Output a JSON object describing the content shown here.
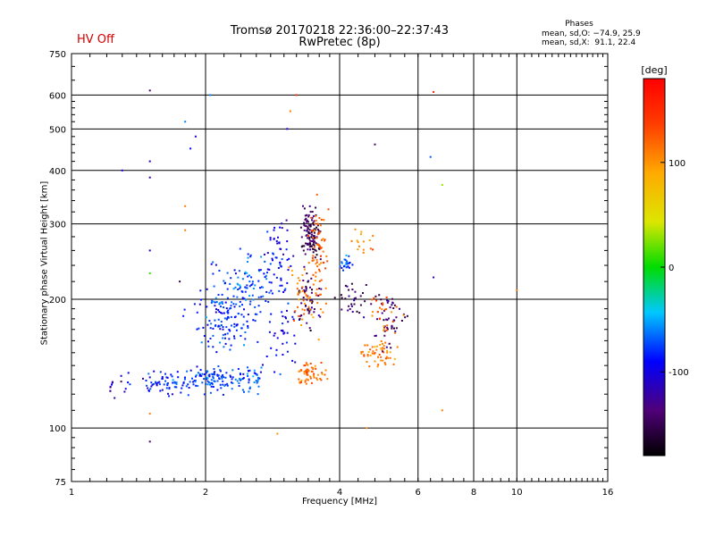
{
  "header": {
    "title_line1": "Tromsø 20170218 22:36:00–22:37:43",
    "title_line2": "RwPretec (8p)",
    "status": "HV Off",
    "phases_title": "Phases",
    "phases_o": "mean, sd,O: −74.9, 25.9",
    "phases_x": "mean, sd,X:  91.1, 22.4"
  },
  "colors": {
    "status": "#d40000"
  },
  "chart_data": {
    "type": "scatter",
    "title": "Tromsø 20170218 22:36:00–22:37:43",
    "subtitle": "RwPretec (8p)",
    "xlabel": "Frequency [MHz]",
    "ylabel": "Stationary phase Virtual Height [km]",
    "x_scale": "log",
    "y_scale": "log",
    "xlim": [
      1,
      16
    ],
    "ylim": [
      75,
      750
    ],
    "x_ticks": [
      1,
      2,
      4,
      6,
      8,
      10,
      16
    ],
    "y_ticks": [
      75,
      100,
      200,
      300,
      400,
      500,
      600,
      750
    ],
    "grid": true,
    "colorbar": {
      "label": "[deg]",
      "range": [
        -180,
        180
      ],
      "ticks": [
        -100,
        0,
        100
      ],
      "colormap": "rainbow"
    },
    "clusters": [
      {
        "f": 1.6,
        "h": 127,
        "sf": 0.2,
        "sh": 6,
        "n": 70,
        "phase": -85
      },
      {
        "f": 1.25,
        "h": 124,
        "sf": 0.05,
        "sh": 4,
        "n": 10,
        "phase": -120
      },
      {
        "f": 2.1,
        "h": 130,
        "sf": 0.2,
        "sh": 6,
        "n": 90,
        "phase": -78
      },
      {
        "f": 2.55,
        "h": 130,
        "sf": 0.2,
        "sh": 7,
        "n": 50,
        "phase": -75
      },
      {
        "f": 2.2,
        "h": 175,
        "sf": 0.25,
        "sh": 20,
        "n": 110,
        "phase": -82
      },
      {
        "f": 2.5,
        "h": 215,
        "sf": 0.35,
        "sh": 28,
        "n": 120,
        "phase": -75
      },
      {
        "f": 2.9,
        "h": 270,
        "sf": 0.15,
        "sh": 45,
        "n": 50,
        "phase": -95
      },
      {
        "f": 3.0,
        "h": 160,
        "sf": 0.15,
        "sh": 25,
        "n": 35,
        "phase": -95
      },
      {
        "f": 3.45,
        "h": 285,
        "sf": 0.12,
        "sh": 28,
        "n": 120,
        "phase": -150
      },
      {
        "f": 3.4,
        "h": 200,
        "sf": 0.15,
        "sh": 20,
        "n": 50,
        "phase": -140
      },
      {
        "f": 3.45,
        "h": 135,
        "sf": 0.18,
        "sh": 6,
        "n": 60,
        "phase": 120
      },
      {
        "f": 3.6,
        "h": 250,
        "sf": 0.12,
        "sh": 60,
        "n": 70,
        "phase": 120
      },
      {
        "f": 3.3,
        "h": 200,
        "sf": 0.15,
        "sh": 25,
        "n": 40,
        "phase": 110
      },
      {
        "f": 4.15,
        "h": 240,
        "sf": 0.12,
        "sh": 8,
        "n": 25,
        "phase": -75
      },
      {
        "f": 4.3,
        "h": 195,
        "sf": 0.25,
        "sh": 15,
        "n": 30,
        "phase": -140
      },
      {
        "f": 4.9,
        "h": 150,
        "sf": 0.3,
        "sh": 8,
        "n": 55,
        "phase": 110
      },
      {
        "f": 5.2,
        "h": 180,
        "sf": 0.35,
        "sh": 18,
        "n": 50,
        "phase": -140
      },
      {
        "f": 5.0,
        "h": 185,
        "sf": 0.35,
        "sh": 15,
        "n": 25,
        "phase": 120
      },
      {
        "f": 4.5,
        "h": 270,
        "sf": 0.2,
        "sh": 25,
        "n": 15,
        "phase": 110
      }
    ],
    "points": [
      {
        "f": 1.5,
        "h": 615,
        "phase": -140
      },
      {
        "f": 1.5,
        "h": 420,
        "phase": -110
      },
      {
        "f": 1.5,
        "h": 385,
        "phase": -120
      },
      {
        "f": 1.5,
        "h": 260,
        "phase": -110
      },
      {
        "f": 1.5,
        "h": 230,
        "phase": 10
      },
      {
        "f": 1.5,
        "h": 108,
        "phase": 110
      },
      {
        "f": 1.5,
        "h": 93,
        "phase": -140
      },
      {
        "f": 1.3,
        "h": 400,
        "phase": -100
      },
      {
        "f": 1.8,
        "h": 520,
        "phase": -60
      },
      {
        "f": 1.9,
        "h": 480,
        "phase": -110
      },
      {
        "f": 1.85,
        "h": 450,
        "phase": -90
      },
      {
        "f": 1.8,
        "h": 330,
        "phase": 110
      },
      {
        "f": 1.8,
        "h": 290,
        "phase": 110
      },
      {
        "f": 1.75,
        "h": 220,
        "phase": -150
      },
      {
        "f": 2.05,
        "h": 600,
        "phase": -60
      },
      {
        "f": 3.1,
        "h": 550,
        "phase": 110
      },
      {
        "f": 3.2,
        "h": 600,
        "phase": 150
      },
      {
        "f": 3.05,
        "h": 500,
        "phase": -100
      },
      {
        "f": 2.9,
        "h": 97,
        "phase": 100
      },
      {
        "f": 4.8,
        "h": 460,
        "phase": -140
      },
      {
        "f": 4.6,
        "h": 100,
        "phase": 100
      },
      {
        "f": 6.5,
        "h": 610,
        "phase": 150
      },
      {
        "f": 6.4,
        "h": 430,
        "phase": -70
      },
      {
        "f": 6.8,
        "h": 370,
        "phase": 30
      },
      {
        "f": 6.5,
        "h": 225,
        "phase": -120
      },
      {
        "f": 6.8,
        "h": 110,
        "phase": 110
      },
      {
        "f": 10.0,
        "h": 210,
        "phase": 110
      }
    ]
  }
}
